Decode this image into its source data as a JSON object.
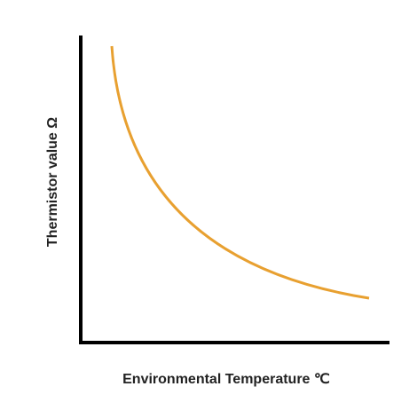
{
  "axes": {
    "y_label": "Thermistor value Ω",
    "x_label": "Environmental Temperature ℃"
  }
}
